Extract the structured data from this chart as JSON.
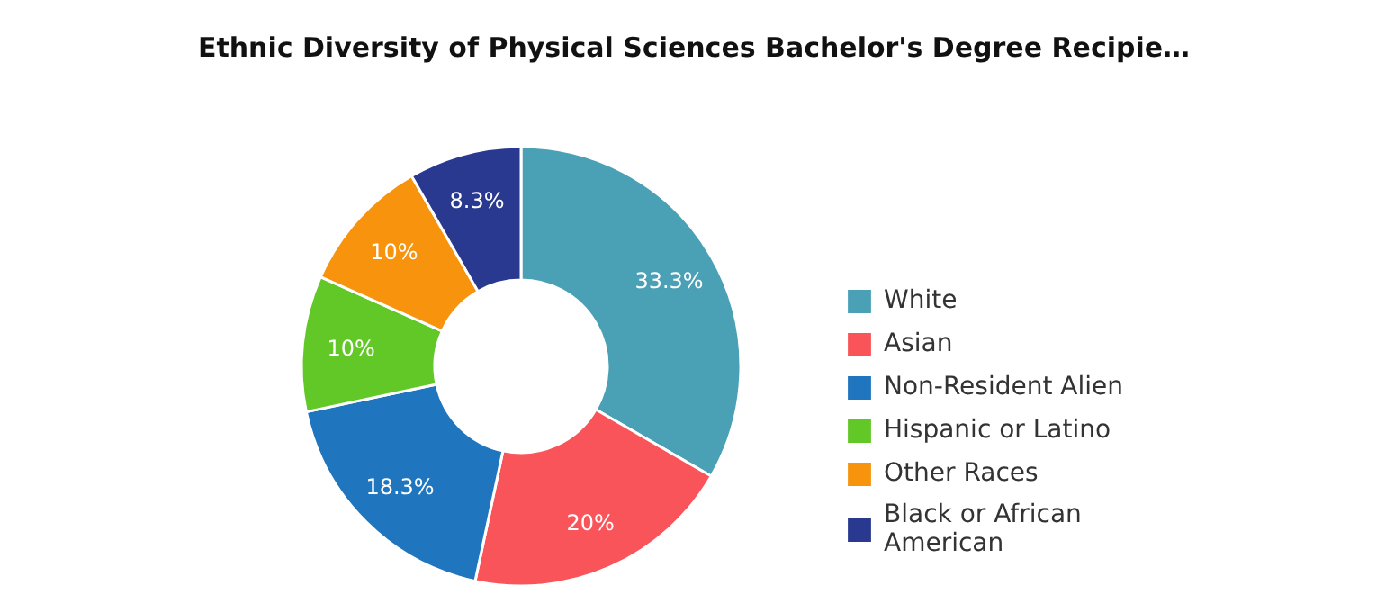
{
  "chart_data": {
    "type": "donut",
    "title": "Ethnic Diversity of Physical Sciences Bachelor's Degree Recipie…",
    "categories": [
      "White",
      "Asian",
      "Non-Resident Alien",
      "Hispanic or Latino",
      "Other Races",
      "Black or African American"
    ],
    "values": [
      33.3,
      20,
      18.3,
      10,
      10,
      8.3
    ],
    "colors": [
      "#4aa0b5",
      "#f95459",
      "#1f75be",
      "#62c828",
      "#f7930d",
      "#2a3990"
    ],
    "value_labels": [
      "33.3%",
      "20%",
      "18.3%",
      "10%",
      "10%",
      "8.3%"
    ],
    "legend": "right"
  }
}
